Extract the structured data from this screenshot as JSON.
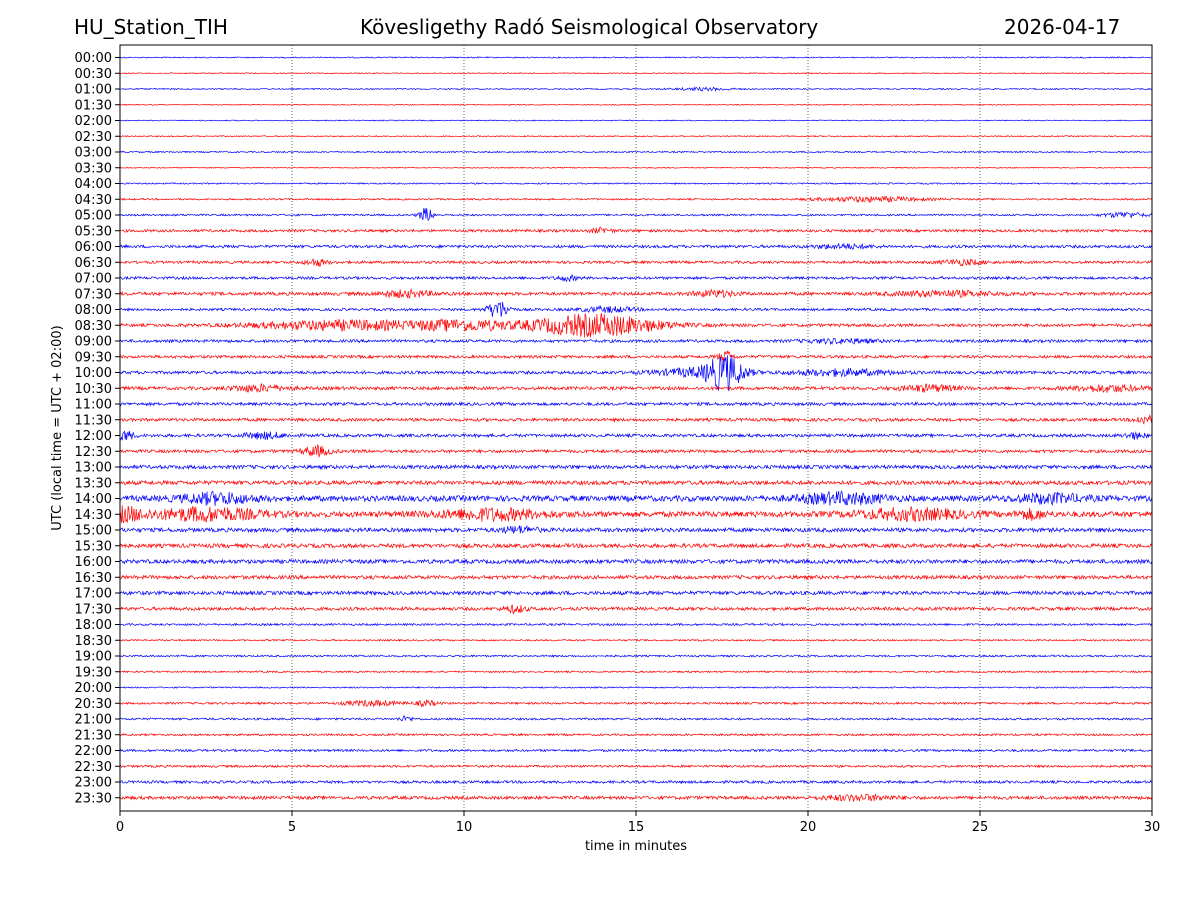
{
  "header": {
    "station": "HU_Station_TIH",
    "observatory": "Kövesligethy Radó Seismological Observatory",
    "date": "2026-04-17"
  },
  "chart_data": {
    "type": "line",
    "title": "Kövesligethy Radó Seismological Observatory",
    "xlabel": "time in minutes",
    "ylabel": "UTC (local time = UTC + 02:00)",
    "xlim": [
      0,
      30
    ],
    "xticks": [
      0,
      5,
      10,
      15,
      20,
      25,
      30
    ],
    "x_gridlines": [
      5,
      10,
      15,
      20,
      25
    ],
    "grid": "vertical dotted",
    "colors": {
      "even_hour": "#0000ff",
      "half_hour": "#ff0000"
    },
    "traces": [
      {
        "label": "00:00",
        "noise": 0.6,
        "events": []
      },
      {
        "label": "00:30",
        "noise": 0.5,
        "events": []
      },
      {
        "label": "01:00",
        "noise": 0.6,
        "events": [
          {
            "t": 17.0,
            "amp": 1.4,
            "dur": 0.8
          }
        ]
      },
      {
        "label": "01:30",
        "noise": 0.5,
        "events": []
      },
      {
        "label": "02:00",
        "noise": 0.5,
        "events": []
      },
      {
        "label": "02:30",
        "noise": 0.6,
        "events": []
      },
      {
        "label": "03:00",
        "noise": 0.7,
        "events": []
      },
      {
        "label": "03:30",
        "noise": 0.5,
        "events": []
      },
      {
        "label": "04:00",
        "noise": 0.7,
        "events": []
      },
      {
        "label": "04:30",
        "noise": 0.8,
        "events": [
          {
            "t": 21.8,
            "amp": 2.5,
            "dur": 1.5
          }
        ]
      },
      {
        "label": "05:00",
        "noise": 0.9,
        "events": [
          {
            "t": 8.9,
            "amp": 7,
            "dur": 0.2
          },
          {
            "t": 29.2,
            "amp": 2.5,
            "dur": 0.6
          }
        ]
      },
      {
        "label": "05:30",
        "noise": 1.3,
        "events": [
          {
            "t": 14.0,
            "amp": 2.5,
            "dur": 0.3
          }
        ]
      },
      {
        "label": "06:00",
        "noise": 1.4,
        "events": [
          {
            "t": 21.0,
            "amp": 2.0,
            "dur": 0.8
          }
        ]
      },
      {
        "label": "06:30",
        "noise": 1.3,
        "events": [
          {
            "t": 5.7,
            "amp": 3.5,
            "dur": 0.3
          },
          {
            "t": 24.5,
            "amp": 2.5,
            "dur": 0.6
          }
        ]
      },
      {
        "label": "07:00",
        "noise": 1.3,
        "events": [
          {
            "t": 13.0,
            "amp": 2.5,
            "dur": 0.3
          }
        ]
      },
      {
        "label": "07:30",
        "noise": 1.6,
        "events": [
          {
            "t": 8.3,
            "amp": 3,
            "dur": 0.8
          },
          {
            "t": 17.3,
            "amp": 3,
            "dur": 0.6
          },
          {
            "t": 24.0,
            "amp": 2.5,
            "dur": 1.5
          }
        ]
      },
      {
        "label": "08:00",
        "noise": 1.2,
        "events": [
          {
            "t": 11.0,
            "amp": 9,
            "dur": 0.3
          },
          {
            "t": 14.2,
            "amp": 2.5,
            "dur": 0.8
          }
        ]
      },
      {
        "label": "08:30",
        "noise": 1.5,
        "events": [
          {
            "t": 6.5,
            "amp": 4.5,
            "dur": 2.5
          },
          {
            "t": 10.0,
            "amp": 4.5,
            "dur": 1.4
          },
          {
            "t": 13.8,
            "amp": 11,
            "dur": 1.8
          }
        ]
      },
      {
        "label": "09:00",
        "noise": 1.4,
        "events": [
          {
            "t": 21.0,
            "amp": 2,
            "dur": 1.0
          }
        ]
      },
      {
        "label": "09:30",
        "noise": 1.4,
        "events": [
          {
            "t": 17.6,
            "amp": 6,
            "dur": 0.2
          }
        ]
      },
      {
        "label": "10:00",
        "noise": 1.5,
        "events": [
          {
            "t": 17.6,
            "amp": 16,
            "dur": 0.5
          },
          {
            "t": 16.8,
            "amp": 4,
            "dur": 1.2
          },
          {
            "t": 21.0,
            "amp": 3,
            "dur": 1.4
          }
        ]
      },
      {
        "label": "10:30",
        "noise": 1.6,
        "events": [
          {
            "t": 4.0,
            "amp": 3,
            "dur": 0.8
          },
          {
            "t": 23.5,
            "amp": 3,
            "dur": 0.8
          },
          {
            "t": 28.7,
            "amp": 3,
            "dur": 1.0
          }
        ]
      },
      {
        "label": "11:00",
        "noise": 1.5,
        "events": []
      },
      {
        "label": "11:30",
        "noise": 1.5,
        "events": [
          {
            "t": 29.8,
            "amp": 4,
            "dur": 0.3
          }
        ]
      },
      {
        "label": "12:00",
        "noise": 1.5,
        "events": [
          {
            "t": 0.1,
            "amp": 5,
            "dur": 0.3
          },
          {
            "t": 4.2,
            "amp": 3,
            "dur": 0.6
          },
          {
            "t": 29.5,
            "amp": 3,
            "dur": 0.3
          }
        ]
      },
      {
        "label": "12:30",
        "noise": 1.5,
        "events": [
          {
            "t": 5.7,
            "amp": 5,
            "dur": 0.4
          }
        ]
      },
      {
        "label": "13:00",
        "noise": 1.8,
        "events": []
      },
      {
        "label": "13:30",
        "noise": 2.0,
        "events": []
      },
      {
        "label": "14:00",
        "noise": 2.8,
        "events": [
          {
            "t": 2.8,
            "amp": 5,
            "dur": 1.0
          },
          {
            "t": 21.0,
            "amp": 5,
            "dur": 1.2
          },
          {
            "t": 27.0,
            "amp": 4,
            "dur": 1.0
          }
        ]
      },
      {
        "label": "14:30",
        "noise": 2.8,
        "events": [
          {
            "t": 0.1,
            "amp": 6,
            "dur": 0.6
          },
          {
            "t": 2.5,
            "amp": 6,
            "dur": 1.5
          },
          {
            "t": 10.8,
            "amp": 5,
            "dur": 1.5
          },
          {
            "t": 23.0,
            "amp": 5,
            "dur": 1.5
          },
          {
            "t": 26.5,
            "amp": 4,
            "dur": 0.4
          }
        ]
      },
      {
        "label": "15:00",
        "noise": 2.0,
        "events": [
          {
            "t": 11.6,
            "amp": 3,
            "dur": 0.5
          }
        ]
      },
      {
        "label": "15:30",
        "noise": 2.0,
        "events": []
      },
      {
        "label": "16:00",
        "noise": 2.0,
        "events": []
      },
      {
        "label": "16:30",
        "noise": 1.8,
        "events": []
      },
      {
        "label": "17:00",
        "noise": 1.8,
        "events": []
      },
      {
        "label": "17:30",
        "noise": 1.6,
        "events": [
          {
            "t": 11.5,
            "amp": 3.5,
            "dur": 0.3
          }
        ]
      },
      {
        "label": "18:00",
        "noise": 1.0,
        "events": []
      },
      {
        "label": "18:30",
        "noise": 0.8,
        "events": []
      },
      {
        "label": "19:00",
        "noise": 0.9,
        "events": []
      },
      {
        "label": "19:30",
        "noise": 0.8,
        "events": []
      },
      {
        "label": "20:00",
        "noise": 0.7,
        "events": []
      },
      {
        "label": "20:30",
        "noise": 1.0,
        "events": [
          {
            "t": 7.3,
            "amp": 2.5,
            "dur": 0.8
          },
          {
            "t": 8.9,
            "amp": 2.5,
            "dur": 0.3
          }
        ]
      },
      {
        "label": "21:00",
        "noise": 1.0,
        "events": [
          {
            "t": 8.3,
            "amp": 2.5,
            "dur": 0.2
          }
        ]
      },
      {
        "label": "21:30",
        "noise": 1.0,
        "events": []
      },
      {
        "label": "22:00",
        "noise": 1.1,
        "events": []
      },
      {
        "label": "22:30",
        "noise": 1.1,
        "events": []
      },
      {
        "label": "23:00",
        "noise": 1.3,
        "events": []
      },
      {
        "label": "23:30",
        "noise": 1.6,
        "events": [
          {
            "t": 21.5,
            "amp": 2.5,
            "dur": 1.0
          }
        ]
      }
    ]
  }
}
